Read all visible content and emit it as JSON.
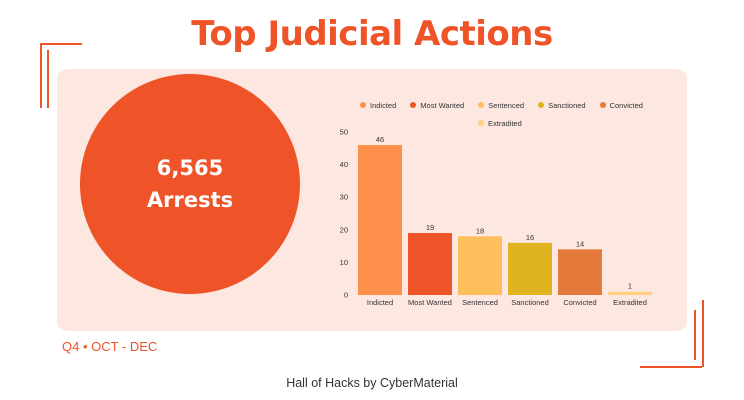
{
  "header": {
    "title": "Top Judicial Actions"
  },
  "stat": {
    "value": "6,565",
    "label": "Arrests"
  },
  "period": "Q4 • OCT - DEC",
  "footer": "Hall of Hacks by CyberMaterial",
  "chart_data": {
    "type": "bar",
    "categories": [
      "Indicted",
      "Most Wanted",
      "Sentenced",
      "Sanctioned",
      "Convicted",
      "Extradited"
    ],
    "values": [
      46,
      19,
      18,
      16,
      14,
      1
    ],
    "colors": [
      "#fe8f4b",
      "#ee5428",
      "#ffbe5c",
      "#dfb420",
      "#e57a3c",
      "#ffd180"
    ],
    "legend": [
      "Indicted",
      "Most Wanted",
      "Sentenced",
      "Sanctioned",
      "Convicted",
      "Extradited"
    ],
    "ylim": [
      0,
      50
    ],
    "yticks": [
      0,
      10,
      20,
      30,
      40,
      50
    ],
    "grid": false,
    "legend_position": "top",
    "data_labels": true
  },
  "colors": {
    "accent": "#ee5428",
    "card_bg": "#fde7e1"
  }
}
